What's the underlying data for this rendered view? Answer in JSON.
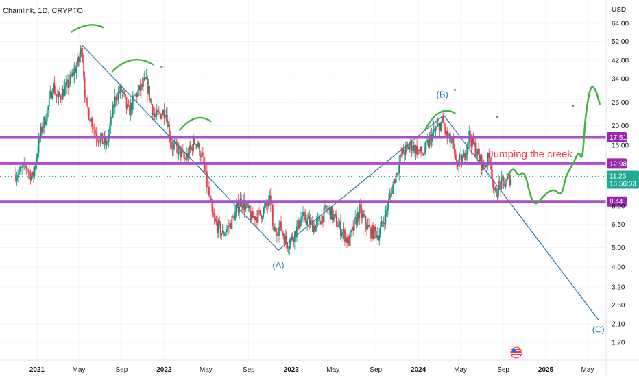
{
  "chart_data": {
    "type": "candlestick",
    "title": "Chainlink, 1D, CRYPTO",
    "currency": "USD",
    "y_scale": "log",
    "ylim": [
      1.55,
      80
    ],
    "y_ticks": [
      {
        "label": "64.00",
        "value": 64
      },
      {
        "label": "52.00",
        "value": 52
      },
      {
        "label": "42.00",
        "value": 42
      },
      {
        "label": "34.00",
        "value": 34
      },
      {
        "label": "26.00",
        "value": 26
      },
      {
        "label": "20.00",
        "value": 20
      },
      {
        "label": "16.00",
        "value": 16
      },
      {
        "label": "8.00",
        "value": 8
      },
      {
        "label": "6.50",
        "value": 6.5
      },
      {
        "label": "5.00",
        "value": 5
      },
      {
        "label": "4.00",
        "value": 4
      },
      {
        "label": "3.20",
        "value": 3.2
      },
      {
        "label": "2.60",
        "value": 2.6
      },
      {
        "label": "2.10",
        "value": 2.1
      },
      {
        "label": "1.70",
        "value": 1.7
      }
    ],
    "x_ticks": [
      {
        "label": "2021",
        "date": "2021-01-01",
        "year": true
      },
      {
        "label": "May",
        "date": "2021-05-01",
        "year": false
      },
      {
        "label": "Sep",
        "date": "2021-09-01",
        "year": false
      },
      {
        "label": "2022",
        "date": "2022-01-01",
        "year": true
      },
      {
        "label": "May",
        "date": "2022-05-01",
        "year": false
      },
      {
        "label": "Sep",
        "date": "2022-09-01",
        "year": false
      },
      {
        "label": "2023",
        "date": "2023-01-01",
        "year": true
      },
      {
        "label": "May",
        "date": "2023-05-01",
        "year": false
      },
      {
        "label": "Sep",
        "date": "2023-09-01",
        "year": false
      },
      {
        "label": "2024",
        "date": "2024-01-01",
        "year": true
      },
      {
        "label": "May",
        "date": "2024-05-01",
        "year": false
      },
      {
        "label": "Sep",
        "date": "2024-09-01",
        "year": false
      },
      {
        "label": "2025",
        "date": "2025-01-01",
        "year": true
      },
      {
        "label": "May",
        "date": "2025-05-01",
        "year": false
      }
    ],
    "price_path": [
      [
        "2020-11-01",
        11.5
      ],
      [
        "2020-12-01",
        12.5
      ],
      [
        "2020-12-20",
        11.0
      ],
      [
        "2021-01-10",
        18.0
      ],
      [
        "2021-02-01",
        24.0
      ],
      [
        "2021-02-15",
        32.0
      ],
      [
        "2021-03-01",
        27.0
      ],
      [
        "2021-04-01",
        32.0
      ],
      [
        "2021-05-01",
        42.0
      ],
      [
        "2021-05-10",
        50.0
      ],
      [
        "2021-05-20",
        26.0
      ],
      [
        "2021-06-20",
        18.0
      ],
      [
        "2021-07-20",
        16.0
      ],
      [
        "2021-08-15",
        28.0
      ],
      [
        "2021-09-01",
        30.0
      ],
      [
        "2021-09-20",
        23.0
      ],
      [
        "2021-10-10",
        28.0
      ],
      [
        "2021-11-10",
        33.0
      ],
      [
        "2021-12-05",
        22.0
      ],
      [
        "2021-12-25",
        23.0
      ],
      [
        "2022-01-05",
        24.0
      ],
      [
        "2022-01-22",
        16.0
      ],
      [
        "2022-02-15",
        15.0
      ],
      [
        "2022-03-01",
        13.5
      ],
      [
        "2022-04-01",
        17.0
      ],
      [
        "2022-04-20",
        14.0
      ],
      [
        "2022-05-10",
        9.0
      ],
      [
        "2022-05-20",
        7.0
      ],
      [
        "2022-06-18",
        5.8
      ],
      [
        "2022-07-10",
        6.5
      ],
      [
        "2022-08-10",
        8.6
      ],
      [
        "2022-09-10",
        7.0
      ],
      [
        "2022-10-05",
        7.3
      ],
      [
        "2022-11-05",
        8.6
      ],
      [
        "2022-11-09",
        6.0
      ],
      [
        "2022-12-01",
        6.3
      ],
      [
        "2022-12-20",
        5.2
      ],
      [
        "2023-01-10",
        5.8
      ],
      [
        "2023-02-01",
        7.1
      ],
      [
        "2023-03-10",
        6.3
      ],
      [
        "2023-04-15",
        7.8
      ],
      [
        "2023-05-15",
        6.5
      ],
      [
        "2023-06-15",
        5.3
      ],
      [
        "2023-07-15",
        7.6
      ],
      [
        "2023-08-15",
        6.0
      ],
      [
        "2023-09-10",
        5.8
      ],
      [
        "2023-10-01",
        7.5
      ],
      [
        "2023-10-25",
        11.0
      ],
      [
        "2023-11-15",
        14.5
      ],
      [
        "2023-12-10",
        16.0
      ],
      [
        "2023-12-31",
        15.0
      ],
      [
        "2024-01-15",
        14.5
      ],
      [
        "2024-02-10",
        18.0
      ],
      [
        "2024-03-10",
        21.0
      ],
      [
        "2024-03-20",
        18.0
      ],
      [
        "2024-04-10",
        16.0
      ],
      [
        "2024-04-15",
        13.0
      ],
      [
        "2024-05-10",
        13.5
      ],
      [
        "2024-05-25",
        18.0
      ],
      [
        "2024-06-15",
        15.0
      ],
      [
        "2024-07-05",
        12.5
      ],
      [
        "2024-07-25",
        14.0
      ],
      [
        "2024-08-06",
        9.0
      ],
      [
        "2024-08-20",
        10.2
      ],
      [
        "2024-09-10",
        10.5
      ],
      [
        "2024-09-25",
        11.23
      ]
    ],
    "wave_lines": [
      {
        "name": "peak-to-a",
        "points": [
          [
            "2021-05-10",
            50.0
          ],
          [
            "2022-11-25",
            4.85
          ]
        ]
      },
      {
        "name": "a-to-b",
        "points": [
          [
            "2022-11-25",
            4.85
          ],
          [
            "2024-03-14",
            22.5
          ]
        ]
      },
      {
        "name": "b-to-c",
        "points": [
          [
            "2024-03-14",
            22.5
          ],
          [
            "2025-06-01",
            2.2
          ]
        ]
      }
    ],
    "levels": [
      {
        "label": "17.51",
        "value": 17.51
      },
      {
        "label": "12.98",
        "value": 12.98
      },
      {
        "label": "8.44",
        "value": 8.44
      }
    ],
    "current_price": {
      "label": "11.23",
      "value": 11.23,
      "countdown": "16:56:03"
    },
    "wave_labels": [
      {
        "text": "(A)",
        "date": "2022-11-25",
        "value": 3.95
      },
      {
        "text": "(B)",
        "date": "2024-03-10",
        "value": 27.5
      },
      {
        "text": "(C)",
        "date": "2025-06-01",
        "value": 1.9
      }
    ],
    "annotation": {
      "text": "Jumping the creek",
      "date": "2024-07-20",
      "value": 13.9
    },
    "projection_path": [
      [
        "2024-09-15",
        11.5
      ],
      [
        "2024-10-01",
        12.4
      ],
      [
        "2024-10-15",
        11.2
      ],
      [
        "2024-11-01",
        12.0
      ],
      [
        "2024-11-20",
        8.6
      ],
      [
        "2024-12-05",
        8.1
      ],
      [
        "2024-12-25",
        9.0
      ],
      [
        "2025-01-25",
        9.8
      ],
      [
        "2025-02-15",
        8.9
      ],
      [
        "2025-03-01",
        11.5
      ],
      [
        "2025-03-20",
        12.8
      ],
      [
        "2025-04-05",
        15.0
      ],
      [
        "2025-04-15",
        13.5
      ],
      [
        "2025-04-20",
        16.5
      ],
      [
        "2025-04-25",
        22.5
      ],
      [
        "2025-05-10",
        32.0
      ],
      [
        "2025-05-25",
        30.0
      ],
      [
        "2025-06-05",
        25.5
      ]
    ],
    "arcs": [
      {
        "name": "arc-1",
        "points": [
          [
            "2021-04-10",
            58
          ],
          [
            "2021-06-01",
            63
          ],
          [
            "2021-07-10",
            61
          ]
        ]
      },
      {
        "name": "arc-2",
        "points": [
          [
            "2021-08-05",
            37
          ],
          [
            "2021-10-01",
            44
          ],
          [
            "2021-12-01",
            40
          ]
        ]
      },
      {
        "name": "arc-3",
        "points": [
          [
            "2022-02-15",
            19
          ],
          [
            "2022-04-01",
            22.5
          ],
          [
            "2022-05-15",
            21
          ]
        ]
      },
      {
        "name": "arc-4",
        "points": [
          [
            "2024-01-20",
            19
          ],
          [
            "2024-03-01",
            24.5
          ],
          [
            "2024-04-15",
            23
          ]
        ]
      }
    ],
    "dots": [
      {
        "date": "2021-12-25",
        "value": 39
      },
      {
        "date": "2024-04-15",
        "value": 30
      },
      {
        "date": "2024-08-15",
        "value": 22
      },
      {
        "date": "2025-03-20",
        "value": 25
      }
    ],
    "colors": {
      "up": "#089981",
      "down": "#f23645",
      "wave_line": "#2f7aa8",
      "level": "#b04cc8",
      "level_badge": "#9c27b0",
      "price_badge": "#22ab94",
      "drawing": "#3cb53c",
      "annotation": "#f23645"
    }
  }
}
